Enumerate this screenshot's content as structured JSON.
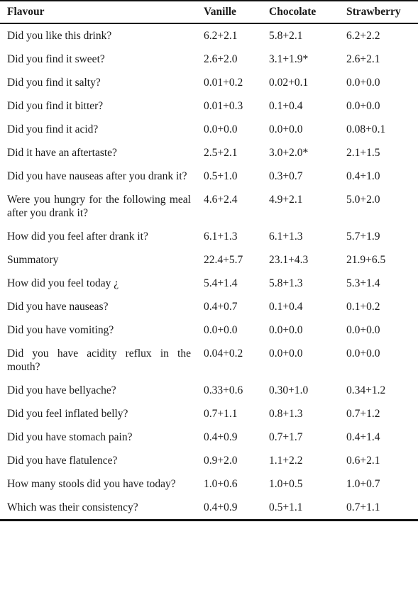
{
  "table": {
    "headers": [
      "Flavour",
      "Vanille",
      "Chocolate",
      "Strawberry"
    ],
    "rows": [
      {
        "question": "Did you like this drink?",
        "vanille": "6.2+2.1",
        "chocolate": "5.8+2.1",
        "strawberry": "6.2+2.2"
      },
      {
        "question": "Did you find it sweet?",
        "vanille": "2.6+2.0",
        "chocolate": "3.1+1.9*",
        "strawberry": "2.6+2.1"
      },
      {
        "question": "Did you find it salty?",
        "vanille": "0.01+0.2",
        "chocolate": "0.02+0.1",
        "strawberry": "0.0+0.0"
      },
      {
        "question": "Did you find it bitter?",
        "vanille": "0.01+0.3",
        "chocolate": "0.1+0.4",
        "strawberry": "0.0+0.0"
      },
      {
        "question": "Did you find it acid?",
        "vanille": "0.0+0.0",
        "chocolate": "0.0+0.0",
        "strawberry": "0.08+0.1"
      },
      {
        "question": "Did it have an aftertaste?",
        "vanille": "2.5+2.1",
        "chocolate": "3.0+2.0*",
        "strawberry": "2.1+1.5"
      },
      {
        "question": "Did you have nauseas after you drank it?",
        "vanille": "0.5+1.0",
        "chocolate": "0.3+0.7",
        "strawberry": "0.4+1.0"
      },
      {
        "question": "Were you hungry for the following meal after you drank it?",
        "vanille": "4.6+2.4",
        "chocolate": "4.9+2.1",
        "strawberry": "5.0+2.0"
      },
      {
        "question": "How did you feel after drank it?",
        "vanille": "6.1+1.3",
        "chocolate": "6.1+1.3",
        "strawberry": "5.7+1.9"
      },
      {
        "question": "Summatory",
        "vanille": "22.4+5.7",
        "chocolate": "23.1+4.3",
        "strawberry": "21.9+6.5"
      },
      {
        "question": "How did you feel today ¿",
        "vanille": "5.4+1.4",
        "chocolate": "5.8+1.3",
        "strawberry": "5.3+1.4"
      },
      {
        "question": "Did you have nauseas?",
        "vanille": "0.4+0.7",
        "chocolate": "0.1+0.4",
        "strawberry": "0.1+0.2"
      },
      {
        "question": "Did you have vomiting?",
        "vanille": "0.0+0.0",
        "chocolate": "0.0+0.0",
        "strawberry": "0.0+0.0"
      },
      {
        "question": "Did you have acidity reflux in the mouth?",
        "vanille": "0.04+0.2",
        "chocolate": "0.0+0.0",
        "strawberry": "0.0+0.0"
      },
      {
        "question": "Did you have bellyache?",
        "vanille": "0.33+0.6",
        "chocolate": "0.30+1.0",
        "strawberry": "0.34+1.2"
      },
      {
        "question": "Did you feel inflated belly?",
        "vanille": "0.7+1.1",
        "chocolate": "0.8+1.3",
        "strawberry": "0.7+1.2"
      },
      {
        "question": "Did you have stomach pain?",
        "vanille": "0.4+0.9",
        "chocolate": "0.7+1.7",
        "strawberry": "0.4+1.4"
      },
      {
        "question": "Did you have flatulence?",
        "vanille": "0.9+2.0",
        "chocolate": "1.1+2.2",
        "strawberry": "0.6+2.1"
      },
      {
        "question": "How many stools did you have today?",
        "vanille": "1.0+0.6",
        "chocolate": "1.0+0.5",
        "strawberry": "1.0+0.7"
      },
      {
        "question": "Which was their consistency?",
        "vanille": "0.4+0.9",
        "chocolate": "0.5+1.1",
        "strawberry": "0.7+1.1"
      }
    ]
  }
}
